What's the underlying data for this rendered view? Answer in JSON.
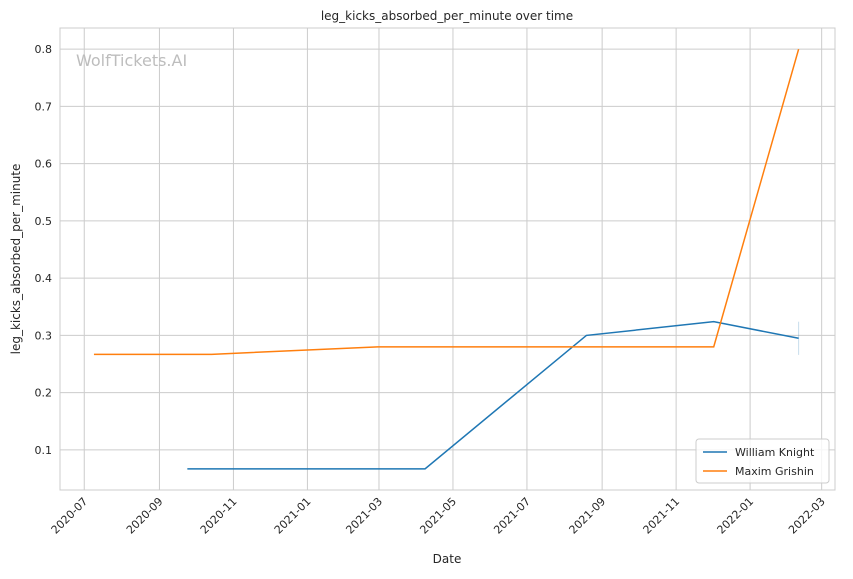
{
  "chart_data": {
    "type": "line",
    "title": "leg_kicks_absorbed_per_minute over time",
    "xlabel": "Date",
    "ylabel": "leg_kicks_absorbed_per_minute",
    "watermark": "WolfTickets.AI",
    "xlim": [
      "2020-06-11",
      "2022-03-12"
    ],
    "ylim": [
      0.03,
      0.837
    ],
    "grid": true,
    "legend_position": "bottom-right",
    "x_ticks": [
      "2020-07",
      "2020-09",
      "2020-11",
      "2021-01",
      "2021-03",
      "2021-05",
      "2021-07",
      "2021-09",
      "2021-11",
      "2022-01",
      "2022-03"
    ],
    "y_ticks": [
      0.1,
      0.2,
      0.3,
      0.4,
      0.5,
      0.6,
      0.7,
      0.8
    ],
    "y_tick_labels": [
      "0.1",
      "0.2",
      "0.3",
      "0.4",
      "0.5",
      "0.6",
      "0.7",
      "0.8"
    ],
    "series": [
      {
        "name": "William Knight",
        "color": "#1f77b4",
        "x": [
          "2020-09-24",
          "2021-04-08",
          "2021-08-19",
          "2021-12-02",
          "2022-02-10"
        ],
        "y": [
          0.067,
          0.067,
          0.3,
          0.324,
          0.295
        ],
        "error_bar": {
          "x": "2022-02-10",
          "low": 0.266,
          "high": 0.324
        }
      },
      {
        "name": "Maxim Grishin",
        "color": "#ff7f0e",
        "x": [
          "2020-07-09",
          "2020-10-14",
          "2021-02-28",
          "2021-12-02",
          "2022-02-10"
        ],
        "y": [
          0.267,
          0.267,
          0.28,
          0.28,
          0.8
        ]
      }
    ]
  }
}
